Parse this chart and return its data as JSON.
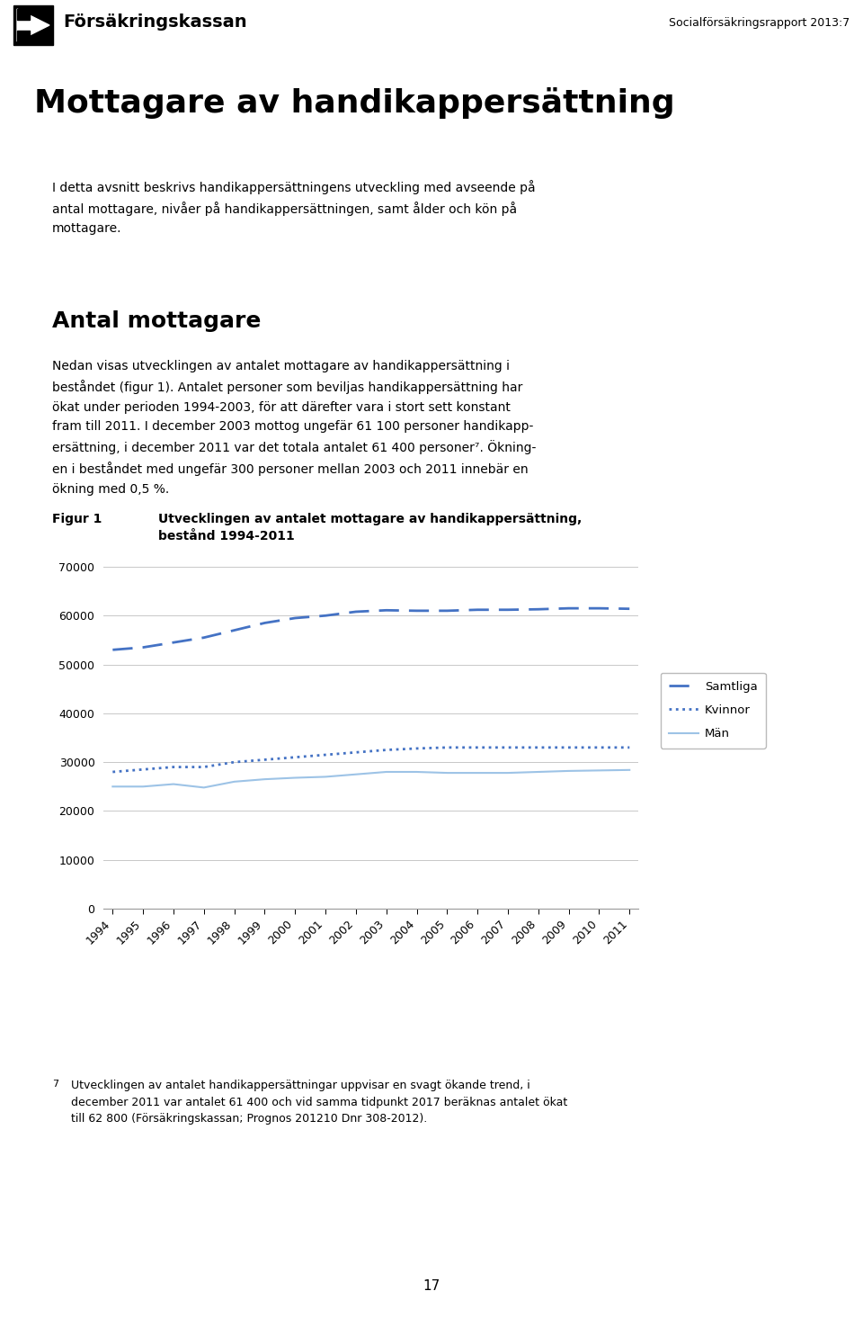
{
  "years": [
    1994,
    1995,
    1996,
    1997,
    1998,
    1999,
    2000,
    2001,
    2002,
    2003,
    2004,
    2005,
    2006,
    2007,
    2008,
    2009,
    2010,
    2011
  ],
  "samtliga": [
    53000,
    53500,
    54500,
    55500,
    57000,
    58500,
    59500,
    60000,
    60800,
    61100,
    61000,
    61000,
    61200,
    61200,
    61300,
    61500,
    61500,
    61400
  ],
  "kvinnor": [
    28000,
    28500,
    29000,
    29000,
    30000,
    30500,
    31000,
    31500,
    32000,
    32500,
    32800,
    33000,
    33000,
    33000,
    33000,
    33000,
    33000,
    33000
  ],
  "man": [
    25000,
    25000,
    25500,
    24800,
    26000,
    26500,
    26800,
    27000,
    27500,
    28000,
    28000,
    27800,
    27800,
    27800,
    28000,
    28200,
    28300,
    28400
  ],
  "line_color": "#4472C4",
  "line_color_light": "#9DC3E6",
  "ylim": [
    0,
    70000
  ],
  "yticks": [
    0,
    10000,
    20000,
    30000,
    40000,
    50000,
    60000,
    70000
  ],
  "title_figure": "Utvecklingen av antalet mottagare av handikappersättning,\nbestånd 1994-2011",
  "figure_label": "Figur 1",
  "legend_samtliga": "Samtliga",
  "legend_kvinnor": "Kvinnor",
  "legend_man": "Män",
  "page_title": "Mottagare av handikappersättning",
  "header_right": "Socialförsäkringsrapport 2013:7",
  "body_text": "I detta avsnitt beskrivs handikappersättningens utveckling med avseende på\nantal mottagare, nivåer på handikappersättningen, samt ålder och kön på\nmottagare.",
  "section_title": "Antal mottagare",
  "section_text_line1": "Nedan visas utvecklingen av antalet mottagare av handikappersättning i",
  "section_text_line2": "beståndet (figur 1). Antalet personer som beviljas handikappersättning har",
  "section_text_line3": "ökat under perioden 1994-2003, för att därefter vara i stort sett konstant",
  "section_text_line4": "fram till 2011. I december 2003 mottog ungefär 61 100 personer handikapp-",
  "section_text_line5": "ersättning, i december 2011 var det totala antalet 61 400 personer⁷. Ökning-",
  "section_text_line6": "en i beståndet med ungefär 300 personer mellan 2003 och 2011 innebär en",
  "section_text_line7": "ökning med 0,5 %.",
  "footnote_line": "Utvecklingen av antalet handikappersättningar uppvisar en svagt ökande trend, i",
  "footnote_line2": "december 2011 var antalet 61 400 och vid samma tidpunkt 2017 beräknas antalet ökat",
  "footnote_line3": "till 62 800 (Försäkringskassan; Prognos 201210 Dnr 308-2012).",
  "page_number": "17",
  "bg_color": "#ffffff",
  "grid_color": "#C8C8C8",
  "text_color": "#000000"
}
